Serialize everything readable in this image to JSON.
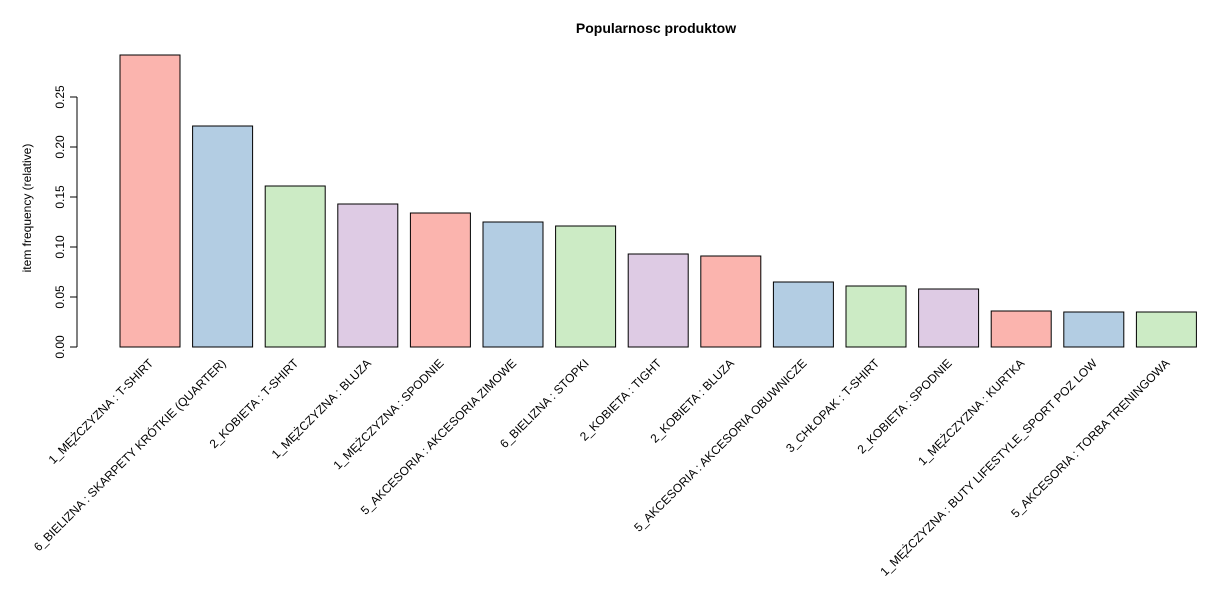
{
  "chart_data": {
    "type": "bar",
    "title": "Popularnosc produktow",
    "xlabel": "",
    "ylabel": "item frequency (relative)",
    "ylim": [
      0,
      0.29
    ],
    "yticks": [
      "0.00",
      "0.05",
      "0.10",
      "0.15",
      "0.20",
      "0.25"
    ],
    "grid": false,
    "categories": [
      "1_MĘŻCZYZNA : T-SHIRT",
      "6_BIELIZNA : SKARPETY KRÓTKIE (QUARTER)",
      "2_KOBIETA : T-SHIRT",
      "1_MĘŻCZYZNA : BLUZA",
      "1_MĘŻCZYZNA : SPODNIE",
      "5_AKCESORIA : AKCESORIA ZIMOWE",
      "6_BIELIZNA : STOPKI",
      "2_KOBIETA : TIGHT",
      "2_KOBIETA : BLUZA",
      "5_AKCESORIA : AKCESORIA OBUWNICZE",
      "3_CHŁOPAK : T-SHIRT",
      "2_KOBIETA : SPODNIE",
      "1_MĘŻCZYZNA : KURTKA",
      "1_MĘŻCZYZNA : BUTY LIFESTYLE_SPORT POZ LOW",
      "5_AKCESORIA : TORBA TRENINGOWA"
    ],
    "values": [
      0.292,
      0.221,
      0.161,
      0.143,
      0.134,
      0.125,
      0.121,
      0.093,
      0.091,
      0.065,
      0.061,
      0.058,
      0.036,
      0.035,
      0.035
    ],
    "colors": [
      "#FBB4AE",
      "#B3CDE3",
      "#CCEBC5",
      "#DECBE4"
    ]
  }
}
